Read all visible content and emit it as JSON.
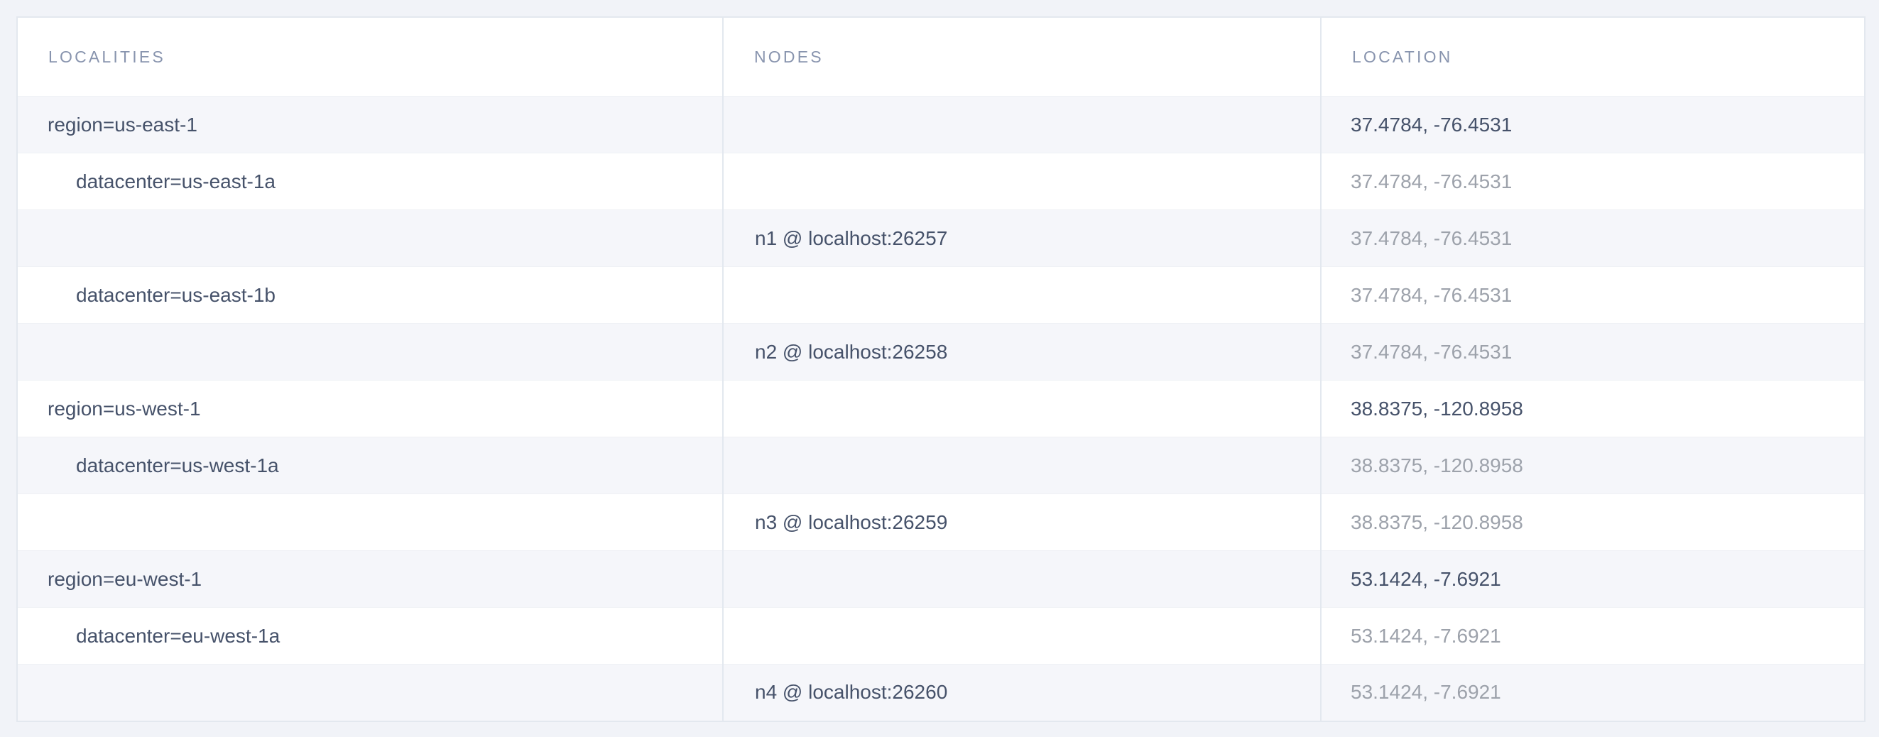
{
  "report": {
    "table": {
      "columns": [
        {
          "key": "localities",
          "label": "LOCALITIES"
        },
        {
          "key": "nodes",
          "label": "NODES"
        },
        {
          "key": "location",
          "label": "LOCATION"
        }
      ],
      "rows": [
        {
          "locality": "region=us-east-1",
          "depth": 1,
          "node": "",
          "location": "37.4784, -76.4531",
          "location_emphasis": "dark"
        },
        {
          "locality": "datacenter=us-east-1a",
          "depth": 2,
          "node": "",
          "location": "37.4784, -76.4531",
          "location_emphasis": "gray"
        },
        {
          "locality": "",
          "depth": 0,
          "node": "n1 @ localhost:26257",
          "location": "37.4784, -76.4531",
          "location_emphasis": "gray"
        },
        {
          "locality": "datacenter=us-east-1b",
          "depth": 2,
          "node": "",
          "location": "37.4784, -76.4531",
          "location_emphasis": "gray"
        },
        {
          "locality": "",
          "depth": 0,
          "node": "n2 @ localhost:26258",
          "location": "37.4784, -76.4531",
          "location_emphasis": "gray"
        },
        {
          "locality": "region=us-west-1",
          "depth": 1,
          "node": "",
          "location": "38.8375, -120.8958",
          "location_emphasis": "dark"
        },
        {
          "locality": "datacenter=us-west-1a",
          "depth": 2,
          "node": "",
          "location": "38.8375, -120.8958",
          "location_emphasis": "gray"
        },
        {
          "locality": "",
          "depth": 0,
          "node": "n3 @ localhost:26259",
          "location": "38.8375, -120.8958",
          "location_emphasis": "gray"
        },
        {
          "locality": "region=eu-west-1",
          "depth": 1,
          "node": "",
          "location": "53.1424, -7.6921",
          "location_emphasis": "dark"
        },
        {
          "locality": "datacenter=eu-west-1a",
          "depth": 2,
          "node": "",
          "location": "53.1424, -7.6921",
          "location_emphasis": "gray"
        },
        {
          "locality": "",
          "depth": 0,
          "node": "n4 @ localhost:26260",
          "location": "53.1424, -7.6921",
          "location_emphasis": "gray"
        }
      ]
    },
    "colors": {
      "page_background": "#f1f3f8",
      "row_stripe": "#f5f6fa",
      "row_white": "#ffffff",
      "table_border": "#e3e8ef",
      "header_text": "#8894ae",
      "text_dark": "#46526a",
      "text_gray": "#9da2ab"
    }
  }
}
